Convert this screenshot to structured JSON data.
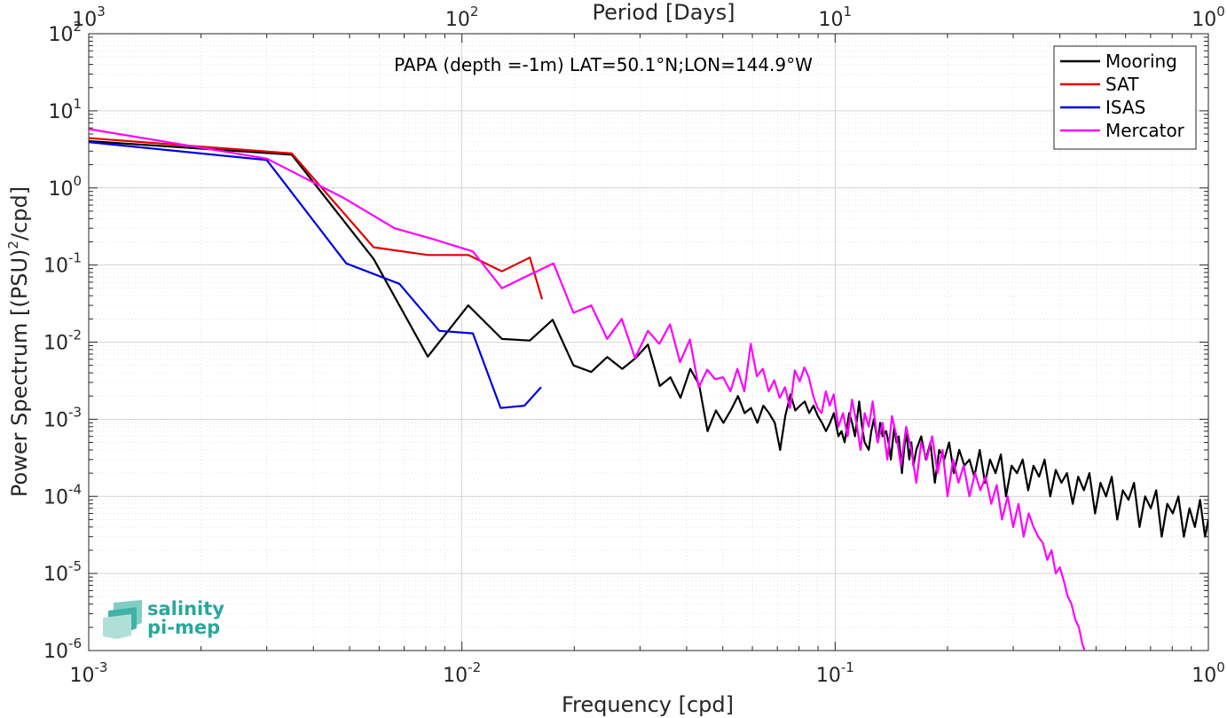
{
  "chart_data": {
    "type": "line",
    "xscale": "log",
    "yscale": "log",
    "xlabel": "Frequency [cpd]",
    "ylabel": "Power Spectrum [(PSU)²/cpd]",
    "ylabel_parts": {
      "main": "Power Spectrum [(PSU)",
      "sup": "2",
      "tail": "/cpd]"
    },
    "top_axis_label": "Period [Days]",
    "annotation": "PAPA (depth =-1m) LAT=50.1°N;LON=144.9°W",
    "xlim": [
      0.001,
      1
    ],
    "ylim": [
      1e-06,
      100
    ],
    "grid": true,
    "legend_position": "top-right",
    "x_ticks": [
      {
        "value": 0.001,
        "base": "10",
        "exp": "-3"
      },
      {
        "value": 0.01,
        "base": "10",
        "exp": "-2"
      },
      {
        "value": 0.1,
        "base": "10",
        "exp": "-1"
      },
      {
        "value": 1,
        "base": "10",
        "exp": "0"
      }
    ],
    "y_ticks": [
      {
        "value": 100,
        "base": "10",
        "exp": "2"
      },
      {
        "value": 10,
        "base": "10",
        "exp": "1"
      },
      {
        "value": 1,
        "base": "10",
        "exp": "0"
      },
      {
        "value": 0.1,
        "base": "10",
        "exp": "-1"
      },
      {
        "value": 0.01,
        "base": "10",
        "exp": "-2"
      },
      {
        "value": 0.001,
        "base": "10",
        "exp": "-3"
      },
      {
        "value": 0.0001,
        "base": "10",
        "exp": "-4"
      },
      {
        "value": 1e-05,
        "base": "10",
        "exp": "-5"
      },
      {
        "value": 1e-06,
        "base": "10",
        "exp": "-6"
      }
    ],
    "top_ticks": [
      {
        "value": 0.001,
        "base": "10",
        "exp": "3"
      },
      {
        "value": 0.01,
        "base": "10",
        "exp": "2"
      },
      {
        "value": 0.1,
        "base": "10",
        "exp": "1"
      },
      {
        "value": 1,
        "base": "10",
        "exp": "0"
      }
    ],
    "series": [
      {
        "name": "Mooring",
        "color": "#000000",
        "x": [
          0.00096,
          0.0035,
          0.0058,
          0.0081,
          0.0104,
          0.0128,
          0.0152,
          0.0175,
          0.0199,
          0.0222,
          0.0245,
          0.0269,
          0.0292,
          0.0315,
          0.0339,
          0.0362,
          0.0385,
          0.0409,
          0.0432,
          0.0455,
          0.0479,
          0.0502,
          0.0525,
          0.0549,
          0.0572,
          0.0595,
          0.0619,
          0.0642,
          0.0665,
          0.0689,
          0.0712,
          0.0735,
          0.0759,
          0.0782,
          0.0805,
          0.0829,
          0.0852,
          0.0875,
          0.0899,
          0.0922,
          0.0945,
          0.0969,
          0.0992,
          0.102,
          0.104,
          0.106,
          0.109,
          0.111,
          0.113,
          0.116,
          0.118,
          0.12,
          0.123,
          0.125,
          0.127,
          0.13,
          0.132,
          0.134,
          0.137,
          0.139,
          0.141,
          0.144,
          0.146,
          0.148,
          0.151,
          0.153,
          0.155,
          0.158,
          0.16,
          0.162,
          0.165,
          0.17,
          0.175,
          0.18,
          0.185,
          0.19,
          0.196,
          0.202,
          0.208,
          0.215,
          0.222,
          0.229,
          0.236,
          0.244,
          0.252,
          0.26,
          0.269,
          0.278,
          0.287,
          0.297,
          0.307,
          0.318,
          0.329,
          0.34,
          0.352,
          0.364,
          0.377,
          0.39,
          0.404,
          0.418,
          0.433,
          0.448,
          0.464,
          0.48,
          0.497,
          0.514,
          0.532,
          0.551,
          0.57,
          0.59,
          0.611,
          0.632,
          0.654,
          0.677,
          0.701,
          0.725,
          0.75,
          0.776,
          0.803,
          0.831,
          0.86,
          0.89,
          0.92,
          0.95,
          0.98,
          1.0
        ],
        "y": [
          4.1,
          2.7,
          0.12,
          0.0065,
          0.03,
          0.011,
          0.0105,
          0.0195,
          0.005,
          0.0041,
          0.0064,
          0.0045,
          0.0062,
          0.0093,
          0.0027,
          0.0035,
          0.0019,
          0.0045,
          0.0028,
          0.0007,
          0.0013,
          0.0009,
          0.0013,
          0.002,
          0.0012,
          0.0014,
          0.0009,
          0.0015,
          0.0012,
          0.0009,
          0.0004,
          0.0011,
          0.0021,
          0.0013,
          0.0015,
          0.0017,
          0.0012,
          0.0015,
          0.0011,
          0.0009,
          0.0007,
          0.0009,
          0.0012,
          0.0006,
          0.0007,
          0.0005,
          0.0012,
          0.0009,
          0.0006,
          0.0017,
          0.0008,
          0.0005,
          0.0004,
          0.0007,
          0.001,
          0.0005,
          0.0009,
          0.0006,
          0.0007,
          0.0005,
          0.0003,
          0.0008,
          0.0005,
          0.0006,
          0.0002,
          0.0004,
          0.0007,
          0.0003,
          0.0005,
          0.00025,
          0.0004,
          0.0006,
          0.0003,
          0.0005,
          0.00015,
          0.0004,
          0.0003,
          0.0005,
          0.0002,
          0.0004,
          0.00025,
          0.0003,
          0.00018,
          0.0004,
          0.00015,
          0.0003,
          0.0002,
          0.00035,
          0.0001,
          0.00025,
          0.0002,
          0.0003,
          0.00012,
          0.00025,
          0.00018,
          0.0003,
          0.0001,
          0.00022,
          0.00015,
          0.0002,
          8e-05,
          0.00018,
          0.00012,
          0.0002,
          6e-05,
          0.00015,
          0.0001,
          0.00018,
          5e-05,
          0.00012,
          9e-05,
          0.00015,
          4e-05,
          0.0001,
          7e-05,
          0.00012,
          3e-05,
          8e-05,
          6e-05,
          0.0001,
          3e-05,
          7e-05,
          4e-05,
          9e-05,
          3e-05,
          5e-05
        ]
      },
      {
        "name": "SAT",
        "color": "#e00000",
        "x": [
          0.00096,
          0.0035,
          0.0058,
          0.0081,
          0.0104,
          0.0128,
          0.0152,
          0.0164
        ],
        "y": [
          4.5,
          2.8,
          0.17,
          0.135,
          0.135,
          0.083,
          0.125,
          0.036
        ]
      },
      {
        "name": "ISAS",
        "color": "#0000e0",
        "x": [
          0.00096,
          0.003,
          0.0049,
          0.0068,
          0.0087,
          0.0107,
          0.0127,
          0.0147,
          0.0163
        ],
        "y": [
          4.0,
          2.3,
          0.105,
          0.057,
          0.014,
          0.013,
          0.0014,
          0.0015,
          0.0026
        ]
      },
      {
        "name": "Mercator",
        "color": "#ff00ff",
        "x": [
          0.00096,
          0.003,
          0.0048,
          0.0066,
          0.0083,
          0.0107,
          0.0128,
          0.0152,
          0.0176,
          0.0199,
          0.0222,
          0.0245,
          0.0268,
          0.0291,
          0.0315,
          0.0338,
          0.0361,
          0.0384,
          0.0408,
          0.0431,
          0.0454,
          0.0477,
          0.0501,
          0.0524,
          0.0547,
          0.0571,
          0.0594,
          0.0617,
          0.064,
          0.0664,
          0.0687,
          0.071,
          0.0734,
          0.0757,
          0.078,
          0.0804,
          0.0827,
          0.085,
          0.0874,
          0.0897,
          0.092,
          0.0944,
          0.0967,
          0.0991,
          0.102,
          0.105,
          0.108,
          0.111,
          0.114,
          0.117,
          0.12,
          0.123,
          0.126,
          0.13,
          0.134,
          0.138,
          0.142,
          0.146,
          0.15,
          0.155,
          0.16,
          0.165,
          0.17,
          0.176,
          0.182,
          0.188,
          0.194,
          0.2,
          0.207,
          0.214,
          0.221,
          0.229,
          0.237,
          0.245,
          0.253,
          0.262,
          0.271,
          0.28,
          0.29,
          0.3,
          0.31,
          0.32,
          0.33,
          0.34,
          0.35,
          0.36,
          0.37,
          0.38,
          0.39,
          0.4,
          0.41,
          0.42,
          0.43,
          0.44,
          0.45,
          0.46,
          0.47
        ],
        "y": [
          6.0,
          2.4,
          0.75,
          0.3,
          0.22,
          0.15,
          0.05,
          0.075,
          0.105,
          0.024,
          0.03,
          0.011,
          0.02,
          0.0062,
          0.014,
          0.0095,
          0.017,
          0.0055,
          0.0108,
          0.0026,
          0.0044,
          0.0033,
          0.0035,
          0.0023,
          0.0045,
          0.0023,
          0.0095,
          0.0036,
          0.0045,
          0.0023,
          0.0032,
          0.0019,
          0.0026,
          0.0014,
          0.0043,
          0.0031,
          0.0047,
          0.0035,
          0.002,
          0.0014,
          0.0012,
          0.0023,
          0.0015,
          0.0021,
          0.0008,
          0.0012,
          0.0006,
          0.0018,
          0.0009,
          0.0004,
          0.0012,
          0.0008,
          0.0017,
          0.0005,
          0.0009,
          0.0003,
          0.0011,
          0.0006,
          0.00025,
          0.0008,
          0.0004,
          0.00015,
          0.0005,
          0.0003,
          0.0006,
          0.0002,
          0.0004,
          0.0001,
          0.0003,
          0.00015,
          0.00025,
          0.0001,
          0.0002,
          0.00012,
          0.00018,
          8e-05,
          0.00014,
          5e-05,
          0.0001,
          4e-05,
          8e-05,
          3e-05,
          6e-05,
          4e-05,
          3e-05,
          2.5e-05,
          1.5e-05,
          2e-05,
          1e-05,
          1.2e-05,
          8e-06,
          5e-06,
          4e-06,
          2.5e-06,
          2e-06,
          1.2e-06,
          9e-07
        ]
      }
    ]
  },
  "logo": {
    "line1": "salinity",
    "line2": "pi-mep"
  }
}
